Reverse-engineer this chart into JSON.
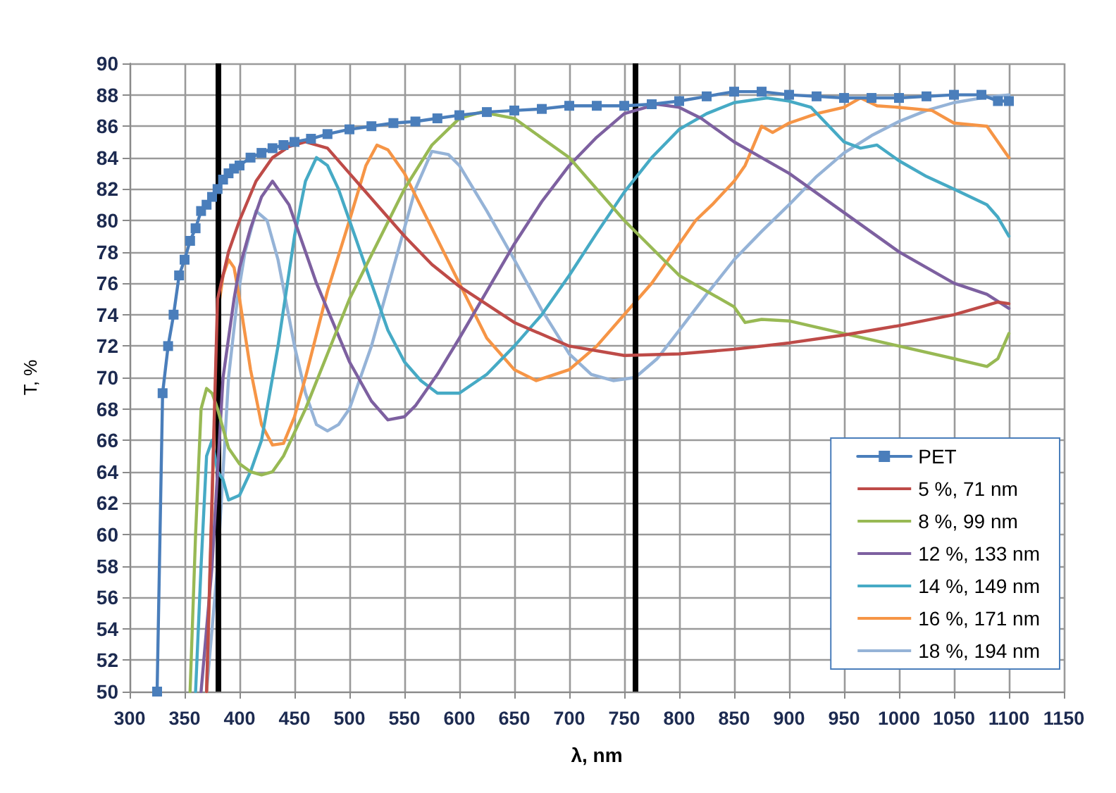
{
  "chart_data": {
    "type": "line",
    "xlabel": "λ, nm",
    "ylabel": "T, %",
    "xlim": [
      300,
      1150
    ],
    "xticks": [
      300,
      350,
      400,
      450,
      500,
      550,
      600,
      650,
      700,
      750,
      800,
      850,
      900,
      950,
      1000,
      1050,
      1100,
      1150
    ],
    "ylim": [
      50,
      90
    ],
    "yticks": [
      50,
      52,
      54,
      56,
      58,
      60,
      62,
      64,
      66,
      68,
      70,
      72,
      74,
      76,
      78,
      80,
      82,
      84,
      86,
      88,
      90
    ],
    "grid": true,
    "legend": "bottom right",
    "ref_lines": [
      {
        "axis": "x",
        "value": 380,
        "color": "#000000"
      },
      {
        "axis": "x",
        "value": 760,
        "color": "#000000"
      }
    ],
    "series": [
      {
        "name": "PET",
        "color": "#4a7ebb",
        "marker": "square",
        "x": [
          325,
          330,
          335,
          340,
          345,
          350,
          355,
          360,
          365,
          370,
          375,
          380,
          385,
          390,
          395,
          400,
          410,
          420,
          430,
          440,
          450,
          465,
          480,
          500,
          520,
          540,
          560,
          580,
          600,
          625,
          650,
          675,
          700,
          725,
          750,
          775,
          800,
          825,
          850,
          875,
          900,
          925,
          950,
          975,
          1000,
          1025,
          1050,
          1075,
          1090,
          1100
        ],
        "values": [
          50,
          69,
          72,
          74,
          76.5,
          77.5,
          78.7,
          79.5,
          80.6,
          81,
          81.5,
          82,
          82.6,
          83,
          83.3,
          83.5,
          84,
          84.3,
          84.6,
          84.8,
          85,
          85.2,
          85.5,
          85.8,
          86,
          86.2,
          86.3,
          86.5,
          86.7,
          86.9,
          87,
          87.1,
          87.3,
          87.3,
          87.3,
          87.4,
          87.6,
          87.9,
          88.2,
          88.2,
          88,
          87.9,
          87.8,
          87.8,
          87.8,
          87.9,
          88,
          88,
          87.6,
          87.6
        ]
      },
      {
        "name": "5 %, 71 nm",
        "color": "#be4b48",
        "marker": "none",
        "x": [
          370,
          380,
          390,
          400,
          415,
          430,
          445,
          460,
          480,
          500,
          525,
          550,
          575,
          600,
          650,
          700,
          750,
          800,
          850,
          900,
          950,
          1000,
          1050,
          1090,
          1100
        ],
        "values": [
          50,
          75,
          78,
          80,
          82.5,
          84,
          84.7,
          85,
          84.6,
          83,
          81,
          79,
          77.2,
          75.8,
          73.5,
          72,
          71.4,
          71.5,
          71.8,
          72.2,
          72.7,
          73.3,
          74,
          74.8,
          74.7
        ]
      },
      {
        "name": "8 %, 99 nm",
        "color": "#98b954",
        "marker": "none",
        "x": [
          355,
          360,
          365,
          370,
          375,
          380,
          390,
          400,
          410,
          420,
          430,
          440,
          460,
          480,
          500,
          525,
          550,
          575,
          600,
          620,
          650,
          700,
          750,
          800,
          850,
          860,
          875,
          900,
          950,
          1000,
          1050,
          1080,
          1090,
          1100
        ],
        "values": [
          50,
          60,
          68,
          69.3,
          69,
          68,
          65.5,
          64.5,
          64,
          63.8,
          64,
          65,
          68,
          71.5,
          75,
          78.5,
          82,
          84.8,
          86.5,
          86.9,
          86.5,
          84,
          80,
          76.5,
          74.5,
          73.5,
          73.7,
          73.6,
          72.8,
          72,
          71.2,
          70.7,
          71.2,
          72.8
        ]
      },
      {
        "name": "12 %, 133 nm",
        "color": "#7d60a0",
        "marker": "none",
        "x": [
          365,
          375,
          385,
          395,
          400,
          410,
          420,
          430,
          445,
          460,
          470,
          485,
          500,
          520,
          535,
          550,
          560,
          580,
          600,
          625,
          650,
          675,
          700,
          725,
          750,
          780,
          800,
          820,
          850,
          875,
          900,
          950,
          1000,
          1050,
          1080,
          1100
        ],
        "values": [
          50,
          58,
          70,
          75,
          77,
          79.5,
          81.5,
          82.5,
          81,
          78,
          76,
          73.5,
          71,
          68.5,
          67.3,
          67.5,
          68.2,
          70.2,
          72.5,
          75.5,
          78.5,
          81.2,
          83.5,
          85.3,
          86.8,
          87.4,
          87.2,
          86.5,
          85,
          84,
          83,
          80.5,
          78,
          76,
          75.3,
          74.4
        ]
      },
      {
        "name": "14 %, 149 nm",
        "color": "#46aac5",
        "marker": "none",
        "x": [
          360,
          365,
          370,
          375,
          380,
          385,
          390,
          400,
          410,
          420,
          435,
          450,
          460,
          470,
          480,
          490,
          505,
          520,
          535,
          550,
          565,
          580,
          600,
          625,
          650,
          675,
          700,
          725,
          750,
          775,
          800,
          825,
          850,
          880,
          900,
          920,
          950,
          965,
          980,
          1000,
          1025,
          1050,
          1080,
          1090,
          1100
        ],
        "values": [
          50,
          58,
          65,
          66,
          64,
          63.5,
          62.2,
          62.5,
          64,
          66,
          72,
          79,
          82.5,
          84,
          83.5,
          82,
          79,
          76,
          73,
          71,
          69.8,
          69,
          69,
          70.2,
          72,
          74,
          76.5,
          79.2,
          81.8,
          84,
          85.8,
          86.8,
          87.5,
          87.8,
          87.6,
          87.2,
          85,
          84.6,
          84.8,
          83.8,
          82.8,
          82,
          81,
          80.2,
          79
        ]
      },
      {
        "name": "16 %, 171 nm",
        "color": "#f69546",
        "marker": "none",
        "x": [
          370,
          375,
          380,
          385,
          390,
          395,
          400,
          410,
          420,
          430,
          440,
          450,
          460,
          480,
          500,
          515,
          525,
          535,
          550,
          575,
          600,
          625,
          650,
          670,
          700,
          725,
          750,
          775,
          800,
          815,
          830,
          850,
          860,
          875,
          885,
          900,
          925,
          950,
          965,
          980,
          1000,
          1030,
          1050,
          1080,
          1100
        ],
        "values": [
          50,
          62,
          74,
          76.5,
          77.5,
          77,
          75,
          70.5,
          67,
          65.7,
          65.8,
          67.5,
          70,
          75.5,
          80,
          83.5,
          84.8,
          84.5,
          83,
          79.5,
          76,
          72.5,
          70.5,
          69.8,
          70.5,
          72,
          74,
          76,
          78.5,
          80,
          81,
          82.5,
          83.5,
          86,
          85.6,
          86.2,
          86.8,
          87.2,
          87.8,
          87.3,
          87.2,
          87,
          86.2,
          86,
          84
        ]
      },
      {
        "name": "18 %, 194 nm",
        "color": "#95b3d7",
        "marker": "none",
        "x": [
          370,
          380,
          390,
          398,
          405,
          415,
          425,
          435,
          450,
          460,
          470,
          480,
          490,
          500,
          520,
          540,
          560,
          575,
          590,
          600,
          625,
          650,
          675,
          700,
          720,
          740,
          760,
          780,
          800,
          825,
          850,
          875,
          900,
          925,
          950,
          975,
          1000,
          1025,
          1050,
          1075,
          1100
        ],
        "values": [
          50,
          58,
          70,
          75,
          78,
          80.6,
          80,
          77.5,
          72,
          69,
          67,
          66.6,
          67,
          68,
          72,
          77,
          82,
          84.4,
          84.2,
          83.5,
          80.6,
          77.5,
          74.3,
          71.5,
          70.2,
          69.8,
          70,
          71.2,
          73,
          75.3,
          77.5,
          79.3,
          81,
          82.8,
          84.3,
          85.4,
          86.3,
          87,
          87.5,
          87.8,
          88
        ]
      }
    ]
  }
}
